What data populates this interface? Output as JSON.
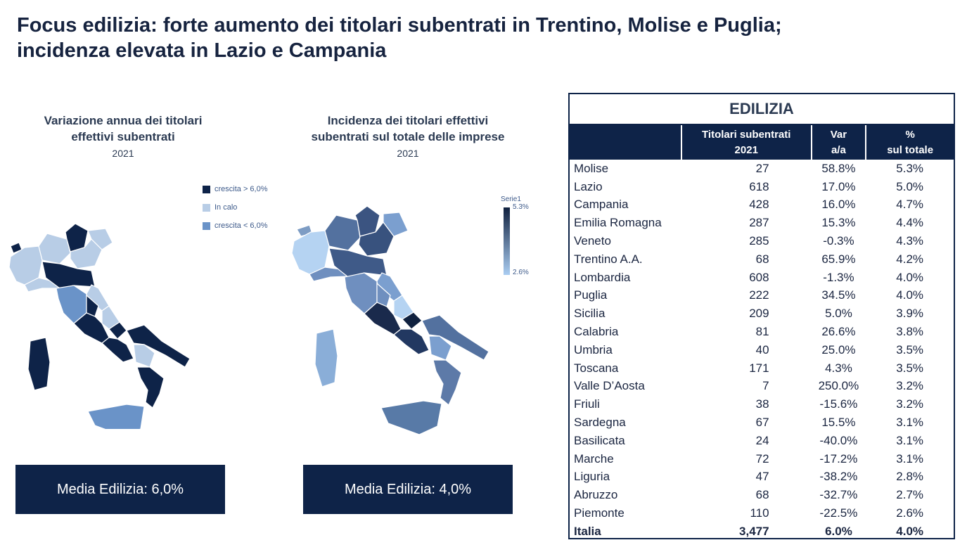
{
  "title": {
    "line1": "Focus edilizia: forte aumento dei titolari subentrati in Trentino, Molise e Puglia;",
    "line2": "incidenza elevata in Lazio e Campania"
  },
  "left_map": {
    "title_line1": "Variazione annua dei titolari",
    "title_line2": "effettivi subentrati",
    "year": "2021",
    "legend": [
      {
        "label": "crescita > 6,0%",
        "color": "#0e2348"
      },
      {
        "label": "In calo",
        "color": "#b8cde6"
      },
      {
        "label": "crescita < 6,0%",
        "color": "#6a93c8"
      }
    ],
    "media_label": "Media Edilizia: 6,0%"
  },
  "right_map": {
    "title_line1": "Incidenza dei titolari effettivi",
    "title_line2": "subentrati sul totale delle imprese",
    "year": "2021",
    "legend_title": "Serie1",
    "legend_max": "5.3%",
    "legend_min": "2.6%",
    "gradient_colors": [
      "#10213f",
      "#aacdf2"
    ],
    "media_label": "Media Edilizia: 4,0%"
  },
  "table": {
    "title": "EDILIZIA",
    "headers": {
      "col2_line1": "Titolari subentrati",
      "col2_line2": "2021",
      "col3_line1": "Var",
      "col3_line2": "a/a",
      "col4_line1": "%",
      "col4_line2": "sul totale"
    },
    "rows": [
      {
        "name": "Molise",
        "num": "27",
        "var": "58.8%",
        "pct": "5.3%"
      },
      {
        "name": "Lazio",
        "num": "618",
        "var": "17.0%",
        "pct": "5.0%"
      },
      {
        "name": "Campania",
        "num": "428",
        "var": "16.0%",
        "pct": "4.7%"
      },
      {
        "name": "Emilia Romagna",
        "num": "287",
        "var": "15.3%",
        "pct": "4.4%"
      },
      {
        "name": "Veneto",
        "num": "285",
        "var": "-0.3%",
        "pct": "4.3%"
      },
      {
        "name": "Trentino A.A.",
        "num": "68",
        "var": "65.9%",
        "pct": "4.2%"
      },
      {
        "name": "Lombardia",
        "num": "608",
        "var": "-1.3%",
        "pct": "4.0%"
      },
      {
        "name": "Puglia",
        "num": "222",
        "var": "34.5%",
        "pct": "4.0%"
      },
      {
        "name": "Sicilia",
        "num": "209",
        "var": "5.0%",
        "pct": "3.9%"
      },
      {
        "name": "Calabria",
        "num": "81",
        "var": "26.6%",
        "pct": "3.8%"
      },
      {
        "name": "Umbria",
        "num": "40",
        "var": "25.0%",
        "pct": "3.5%"
      },
      {
        "name": "Toscana",
        "num": "171",
        "var": "4.3%",
        "pct": "3.5%"
      },
      {
        "name": "Valle D’Aosta",
        "num": "7",
        "var": "250.0%",
        "pct": "3.2%"
      },
      {
        "name": "Friuli",
        "num": "38",
        "var": "-15.6%",
        "pct": "3.2%"
      },
      {
        "name": "Sardegna",
        "num": "67",
        "var": "15.5%",
        "pct": "3.1%"
      },
      {
        "name": "Basilicata",
        "num": "24",
        "var": "-40.0%",
        "pct": "3.1%"
      },
      {
        "name": "Marche",
        "num": "72",
        "var": "-17.2%",
        "pct": "3.1%"
      },
      {
        "name": "Liguria",
        "num": "47",
        "var": "-38.2%",
        "pct": "2.8%"
      },
      {
        "name": "Abruzzo",
        "num": "68",
        "var": "-32.7%",
        "pct": "2.7%"
      },
      {
        "name": "Piemonte",
        "num": "110",
        "var": "-22.5%",
        "pct": "2.6%"
      }
    ],
    "total": {
      "name": "Italia",
      "num": "3,477",
      "var": "6.0%",
      "pct": "4.0%"
    }
  }
}
